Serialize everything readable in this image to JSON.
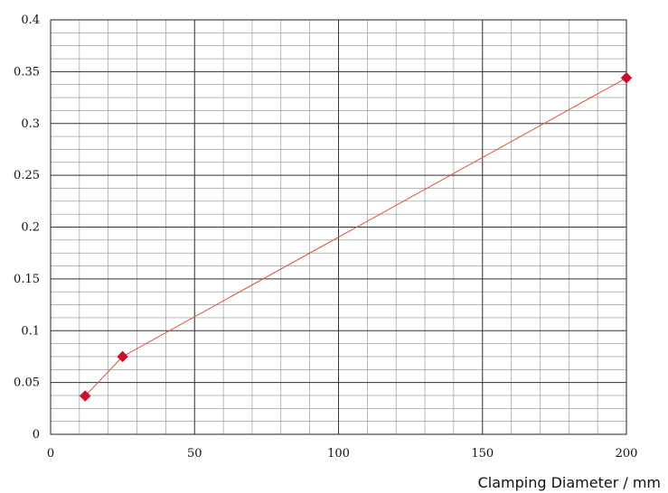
{
  "chart_data": {
    "type": "line",
    "title": "",
    "xlabel": "Clamping Diameter / mm",
    "ylabel": "",
    "xlim": [
      0,
      200
    ],
    "ylim": [
      0,
      0.4
    ],
    "x_ticks": [
      {
        "value": 0,
        "label": "0"
      },
      {
        "value": 50,
        "label": "50"
      },
      {
        "value": 100,
        "label": "100"
      },
      {
        "value": 150,
        "label": "150"
      },
      {
        "value": 200,
        "label": "200"
      }
    ],
    "y_ticks": [
      {
        "value": 0,
        "label": "0"
      },
      {
        "value": 0.05,
        "label": "0.05"
      },
      {
        "value": 0.1,
        "label": "0.1"
      },
      {
        "value": 0.15,
        "label": "0.15"
      },
      {
        "value": 0.2,
        "label": "0.2"
      },
      {
        "value": 0.25,
        "label": "0.25"
      },
      {
        "value": 0.3,
        "label": "0.3"
      },
      {
        "value": 0.35,
        "label": "0.35"
      },
      {
        "value": 0.4,
        "label": "0.4"
      }
    ],
    "grid": {
      "major": true,
      "minor": true,
      "x_minor_step": 10,
      "y_minor_step": 0.0125
    },
    "series": [
      {
        "x": [
          12,
          25,
          200
        ],
        "y": [
          0.037,
          0.075,
          0.344
        ],
        "line_color": "#e0503c",
        "marker": "diamond",
        "marker_color": "#c8102e"
      }
    ]
  }
}
